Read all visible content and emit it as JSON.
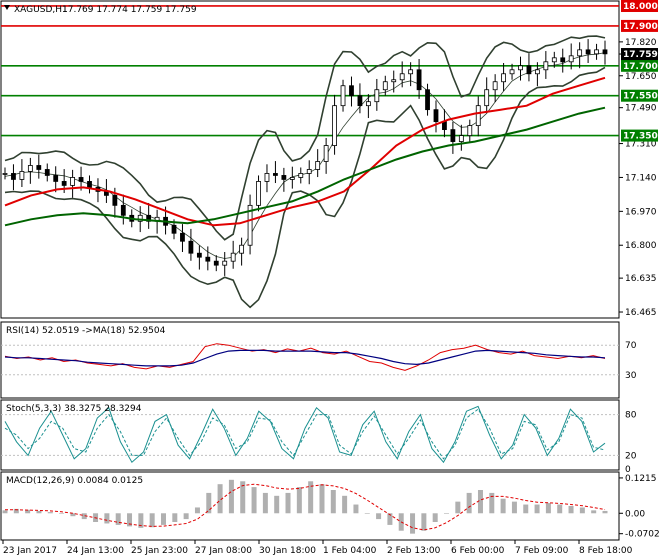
{
  "chart_data": [
    {
      "type": "candlestick",
      "panel": "price",
      "symbol": "XAGUSD,H1",
      "ohlc_header": "17.769 17.774 17.759 17.759",
      "last_price": "17.759",
      "y_axis_labels": [
        "17.820",
        "17.759",
        "17.650",
        "17.490",
        "17.310",
        "17.140",
        "16.970",
        "16.800",
        "16.635",
        "16.465"
      ],
      "ylim": [
        16.44,
        18.02
      ],
      "x_axis_labels": [
        "23 Jan 2017",
        "24 Jan 13:00",
        "25 Jan 23:00",
        "27 Jan 08:00",
        "30 Jan 18:00",
        "1 Feb 04:00",
        "2 Feb 13:00",
        "6 Feb 00:00",
        "7 Feb 09:00",
        "8 Feb 18:00"
      ],
      "levels": [
        {
          "label": "18.000",
          "value": 18.0,
          "color": "#e00000"
        },
        {
          "label": "17.900",
          "value": 17.9,
          "color": "#e00000"
        },
        {
          "label": "17.700",
          "value": 17.7,
          "color": "#008000"
        },
        {
          "label": "17.550",
          "value": 17.55,
          "color": "#008000"
        },
        {
          "label": "17.350",
          "value": 17.35,
          "color": "#008000"
        }
      ],
      "close_series": [
        17.16,
        17.13,
        17.17,
        17.2,
        17.18,
        17.15,
        17.12,
        17.1,
        17.14,
        17.12,
        17.09,
        17.07,
        17.05,
        17.0,
        16.95,
        16.92,
        16.95,
        16.92,
        16.94,
        16.9,
        16.86,
        16.82,
        16.76,
        16.74,
        16.72,
        16.7,
        16.72,
        16.76,
        16.8,
        17.0,
        17.12,
        17.16,
        17.15,
        17.13,
        17.14,
        17.16,
        17.18,
        17.22,
        17.3,
        17.5,
        17.6,
        17.55,
        17.5,
        17.52,
        17.58,
        17.62,
        17.63,
        17.66,
        17.68,
        17.58,
        17.48,
        17.42,
        17.38,
        17.32,
        17.35,
        17.4,
        17.5,
        17.58,
        17.62,
        17.66,
        17.68,
        17.7,
        17.66,
        17.68,
        17.72,
        17.74,
        17.72,
        17.75,
        17.78,
        17.76,
        17.78,
        17.76
      ],
      "ma_red": [
        17.0,
        17.05,
        17.08,
        17.09,
        17.07,
        17.03,
        16.98,
        16.93,
        16.9,
        16.91,
        16.95,
        16.99,
        17.02,
        17.07,
        17.18,
        17.3,
        17.38,
        17.43,
        17.46,
        17.48,
        17.5,
        17.56,
        17.6,
        17.64
      ],
      "ma_green": [
        16.9,
        16.93,
        16.95,
        16.96,
        16.95,
        16.93,
        16.92,
        16.91,
        16.93,
        16.96,
        16.99,
        17.02,
        17.07,
        17.13,
        17.18,
        17.23,
        17.27,
        17.3,
        17.32,
        17.35,
        17.38,
        17.42,
        17.46,
        17.49
      ],
      "colors": {
        "ma_red": "#e00000",
        "ma_green": "#006400",
        "bands": "#304030",
        "candles": "#000000"
      }
    },
    {
      "type": "line",
      "panel": "rsi",
      "title": "RSI(14) 52.0519 ->MA(18) 52.9504",
      "y_axis_labels": [
        "70",
        "30"
      ],
      "ylim": [
        0,
        100
      ],
      "series": [
        {
          "values": [
            55,
            52,
            54,
            50,
            53,
            48,
            50,
            46,
            44,
            42,
            45,
            40,
            38,
            42,
            40,
            44,
            48,
            68,
            72,
            70,
            66,
            62,
            64,
            60,
            65,
            62,
            66,
            60,
            58,
            62,
            55,
            48,
            46,
            40,
            36,
            42,
            50,
            60,
            64,
            66,
            70,
            64,
            60,
            58,
            62,
            56,
            54,
            52,
            55,
            53,
            56,
            52
          ],
          "color": "#e00000"
        },
        {
          "values": [
            54,
            53,
            53,
            52,
            51,
            50,
            49,
            47,
            46,
            45,
            44,
            43,
            42,
            42,
            42,
            43,
            46,
            52,
            58,
            62,
            63,
            63,
            63,
            62,
            62,
            62,
            62,
            61,
            60,
            60,
            58,
            55,
            52,
            48,
            45,
            44,
            46,
            50,
            54,
            58,
            62,
            63,
            62,
            61,
            60,
            59,
            57,
            56,
            55,
            54,
            54,
            53
          ],
          "color": "#000080"
        }
      ]
    },
    {
      "type": "line",
      "panel": "stochastic",
      "title": "Stoch(5,3,3) 38.3275 28.3294",
      "y_axis_labels": [
        "80",
        "20",
        "0"
      ],
      "ylim": [
        0,
        100
      ],
      "series": [
        {
          "values": [
            70,
            40,
            20,
            60,
            85,
            50,
            15,
            30,
            75,
            90,
            40,
            10,
            25,
            70,
            80,
            35,
            15,
            50,
            88,
            60,
            20,
            45,
            85,
            70,
            30,
            15,
            60,
            90,
            75,
            25,
            20,
            65,
            85,
            40,
            15,
            55,
            80,
            30,
            10,
            40,
            85,
            92,
            50,
            15,
            35,
            80,
            60,
            20,
            45,
            88,
            70,
            25,
            38
          ],
          "color": "#1a9090"
        },
        {
          "values": [
            60,
            50,
            30,
            45,
            70,
            60,
            30,
            25,
            60,
            80,
            55,
            20,
            20,
            55,
            75,
            45,
            20,
            40,
            75,
            65,
            30,
            40,
            75,
            72,
            40,
            20,
            50,
            80,
            80,
            35,
            22,
            55,
            78,
            50,
            22,
            45,
            72,
            40,
            15,
            35,
            75,
            88,
            60,
            22,
            30,
            70,
            65,
            28,
            40,
            80,
            75,
            32,
            28
          ],
          "color": "#1a9090"
        }
      ]
    },
    {
      "type": "bar",
      "panel": "macd",
      "title": "MACD(12,26,9) 0.0084 0.0125",
      "y_axis_labels": [
        "0.1215",
        "0.00",
        "-0.0702"
      ],
      "ylim": [
        -0.085,
        0.135
      ],
      "histogram": [
        0.01,
        0.015,
        0.012,
        0.008,
        0.004,
        0.0,
        -0.01,
        -0.02,
        -0.03,
        -0.035,
        -0.04,
        -0.045,
        -0.05,
        -0.048,
        -0.04,
        -0.03,
        -0.02,
        0.02,
        0.07,
        0.1,
        0.115,
        0.11,
        0.09,
        0.07,
        0.06,
        0.07,
        0.09,
        0.11,
        0.1,
        0.08,
        0.06,
        0.03,
        0.0,
        -0.02,
        -0.04,
        -0.06,
        -0.07,
        -0.06,
        -0.03,
        0.0,
        0.04,
        0.07,
        0.08,
        0.07,
        0.05,
        0.04,
        0.03,
        0.03,
        0.035,
        0.03,
        0.025,
        0.02,
        0.01,
        0.008
      ],
      "signal": [
        0.012,
        0.012,
        0.011,
        0.01,
        0.008,
        0.005,
        0.0,
        -0.008,
        -0.016,
        -0.024,
        -0.031,
        -0.037,
        -0.042,
        -0.045,
        -0.044,
        -0.04,
        -0.035,
        -0.02,
        0.01,
        0.045,
        0.075,
        0.095,
        0.1,
        0.095,
        0.087,
        0.083,
        0.085,
        0.093,
        0.098,
        0.094,
        0.085,
        0.068,
        0.045,
        0.02,
        -0.005,
        -0.03,
        -0.05,
        -0.057,
        -0.05,
        -0.032,
        -0.008,
        0.022,
        0.046,
        0.058,
        0.058,
        0.052,
        0.044,
        0.038,
        0.036,
        0.034,
        0.03,
        0.026,
        0.02,
        0.0125
      ],
      "colors": {
        "histogram": "#b0b0b0",
        "signal": "#e00000"
      }
    }
  ]
}
